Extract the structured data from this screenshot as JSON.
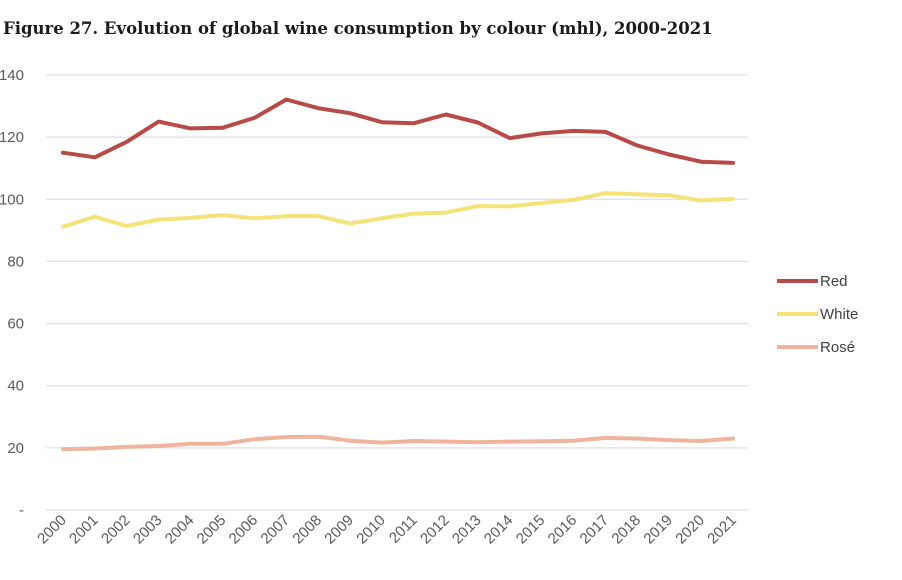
{
  "figure": {
    "title": "Figure 27. Evolution of global wine consumption by colour (mhl), 2000-2021"
  },
  "chart_data": {
    "type": "line",
    "title": "Figure 27. Evolution of global wine consumption by colour (mhl), 2000-2021",
    "xlabel": "",
    "ylabel": "",
    "ylim": [
      0,
      140
    ],
    "y_ticks": [
      0,
      20,
      40,
      60,
      80,
      100,
      120,
      140
    ],
    "y_tick_labels": [
      "-",
      "20",
      "40",
      "60",
      "80",
      "100",
      "120",
      "140"
    ],
    "grid": "horizontal",
    "legend_position": "right",
    "categories": [
      "2000",
      "2001",
      "2002",
      "2003",
      "2004",
      "2005",
      "2006",
      "2007",
      "2008",
      "2009",
      "2010",
      "2011",
      "2012",
      "2013",
      "2014",
      "2015",
      "2016",
      "2017",
      "2018",
      "2019",
      "2020",
      "2021"
    ],
    "series": [
      {
        "name": "Red",
        "color": "#b84a48",
        "values": [
          115.0,
          113.5,
          118.5,
          125.0,
          122.8,
          123.0,
          126.2,
          132.1,
          129.3,
          127.7,
          124.8,
          124.5,
          127.3,
          124.7,
          119.7,
          121.2,
          122.0,
          121.7,
          117.3,
          114.4,
          112.1,
          111.7
        ]
      },
      {
        "name": "White",
        "color": "#f5e37a",
        "values": [
          91.2,
          94.4,
          91.4,
          93.5,
          94.0,
          94.9,
          93.9,
          94.6,
          94.6,
          92.2,
          93.9,
          95.4,
          95.7,
          97.8,
          97.7,
          98.8,
          99.8,
          102.0,
          101.6,
          101.3,
          99.6,
          100.2
        ]
      },
      {
        "name": "Rosé",
        "color": "#efb49b",
        "values": [
          19.6,
          19.8,
          20.3,
          20.6,
          21.3,
          21.3,
          22.8,
          23.5,
          23.6,
          22.3,
          21.7,
          22.2,
          22.0,
          21.8,
          22.0,
          22.1,
          22.3,
          23.2,
          23.0,
          22.5,
          22.2,
          23.0
        ]
      }
    ]
  }
}
